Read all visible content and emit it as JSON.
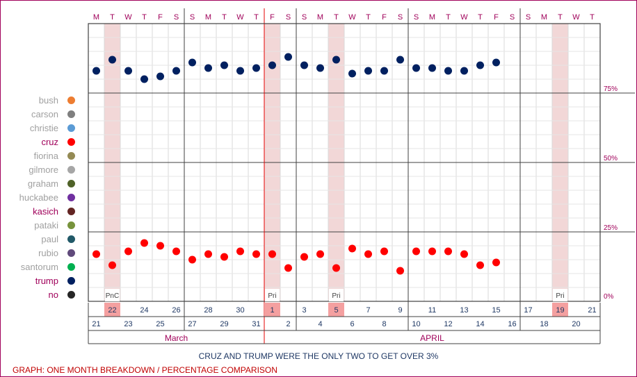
{
  "legend": [
    {
      "name": "bush",
      "color": "#ed7d31",
      "highlight": false
    },
    {
      "name": "carson",
      "color": "#7f7f7f",
      "highlight": false
    },
    {
      "name": "christie",
      "color": "#5b9bd5",
      "highlight": false
    },
    {
      "name": "cruz",
      "color": "#ff0000",
      "highlight": true
    },
    {
      "name": "fiorina",
      "color": "#948a54",
      "highlight": false
    },
    {
      "name": "gilmore",
      "color": "#a6a6a6",
      "highlight": false
    },
    {
      "name": "graham",
      "color": "#4f6228",
      "highlight": false
    },
    {
      "name": "huckabee",
      "color": "#7030a0",
      "highlight": false
    },
    {
      "name": "kasich",
      "color": "#632523",
      "highlight": true
    },
    {
      "name": "pataki",
      "color": "#77933c",
      "highlight": false
    },
    {
      "name": "paul",
      "color": "#215968",
      "highlight": false
    },
    {
      "name": "rubio",
      "color": "#604a7b",
      "highlight": false
    },
    {
      "name": "santorum",
      "color": "#00b050",
      "highlight": false
    },
    {
      "name": "trump",
      "color": "#002060",
      "highlight": true
    },
    {
      "name": "no",
      "color": "#262626",
      "highlight": true
    }
  ],
  "subtitle": "CRUZ AND TRUMP WERE THE ONLY TWO TO GET OVER 3%",
  "footer": "GRAPH: ONE MONTH BREAKDOWN / PERCENTAGE COMPARISON",
  "chart_data": {
    "type": "scatter",
    "weekday_letters": [
      "M",
      "T",
      "W",
      "T",
      "F",
      "S",
      "S",
      "M",
      "T",
      "W",
      "T",
      "F",
      "S",
      "S",
      "M",
      "T",
      "W",
      "T",
      "F",
      "S",
      "S",
      "M",
      "T",
      "W",
      "T",
      "F",
      "S",
      "S",
      "M",
      "T",
      "W",
      "T"
    ],
    "day_numbers": [
      "21",
      "22",
      "23",
      "24",
      "25",
      "26",
      "27",
      "28",
      "29",
      "30",
      "31",
      "1",
      "2",
      "3",
      "4",
      "5",
      "6",
      "7",
      "8",
      "9",
      "10",
      "11",
      "12",
      "13",
      "14",
      "15",
      "16",
      "17",
      "18",
      "19",
      "20",
      "21"
    ],
    "months": [
      {
        "label": "March",
        "start": 0,
        "end": 10
      },
      {
        "label": "APRIL",
        "start": 11,
        "end": 31
      }
    ],
    "highlight_days": [
      1,
      11,
      15,
      29
    ],
    "event_labels": [
      {
        "day": 1,
        "label": "PnC"
      },
      {
        "day": 11,
        "label": "Pri"
      },
      {
        "day": 15,
        "label": "Pri"
      },
      {
        "day": 29,
        "label": "Pri"
      }
    ],
    "y_ticks": [
      "0%",
      "25%",
      "50%",
      "75%"
    ],
    "ylim": [
      0,
      100
    ],
    "series": [
      {
        "name": "trump",
        "color": "#002060",
        "values": [
          83,
          87,
          83,
          80,
          81,
          83,
          86,
          84,
          85,
          83,
          84,
          85,
          88,
          85,
          84,
          87,
          82,
          83,
          83,
          87,
          84,
          84,
          83,
          83,
          85,
          86,
          null,
          null,
          null,
          null,
          null,
          null
        ]
      },
      {
        "name": "cruz",
        "color": "#ff0000",
        "values": [
          17,
          13,
          18,
          21,
          20,
          18,
          15,
          17,
          16,
          18,
          17,
          17,
          12,
          16,
          17,
          12,
          19,
          17,
          18,
          11,
          18,
          18,
          18,
          17,
          13,
          14,
          null,
          null,
          null,
          null,
          null,
          null
        ]
      }
    ]
  }
}
